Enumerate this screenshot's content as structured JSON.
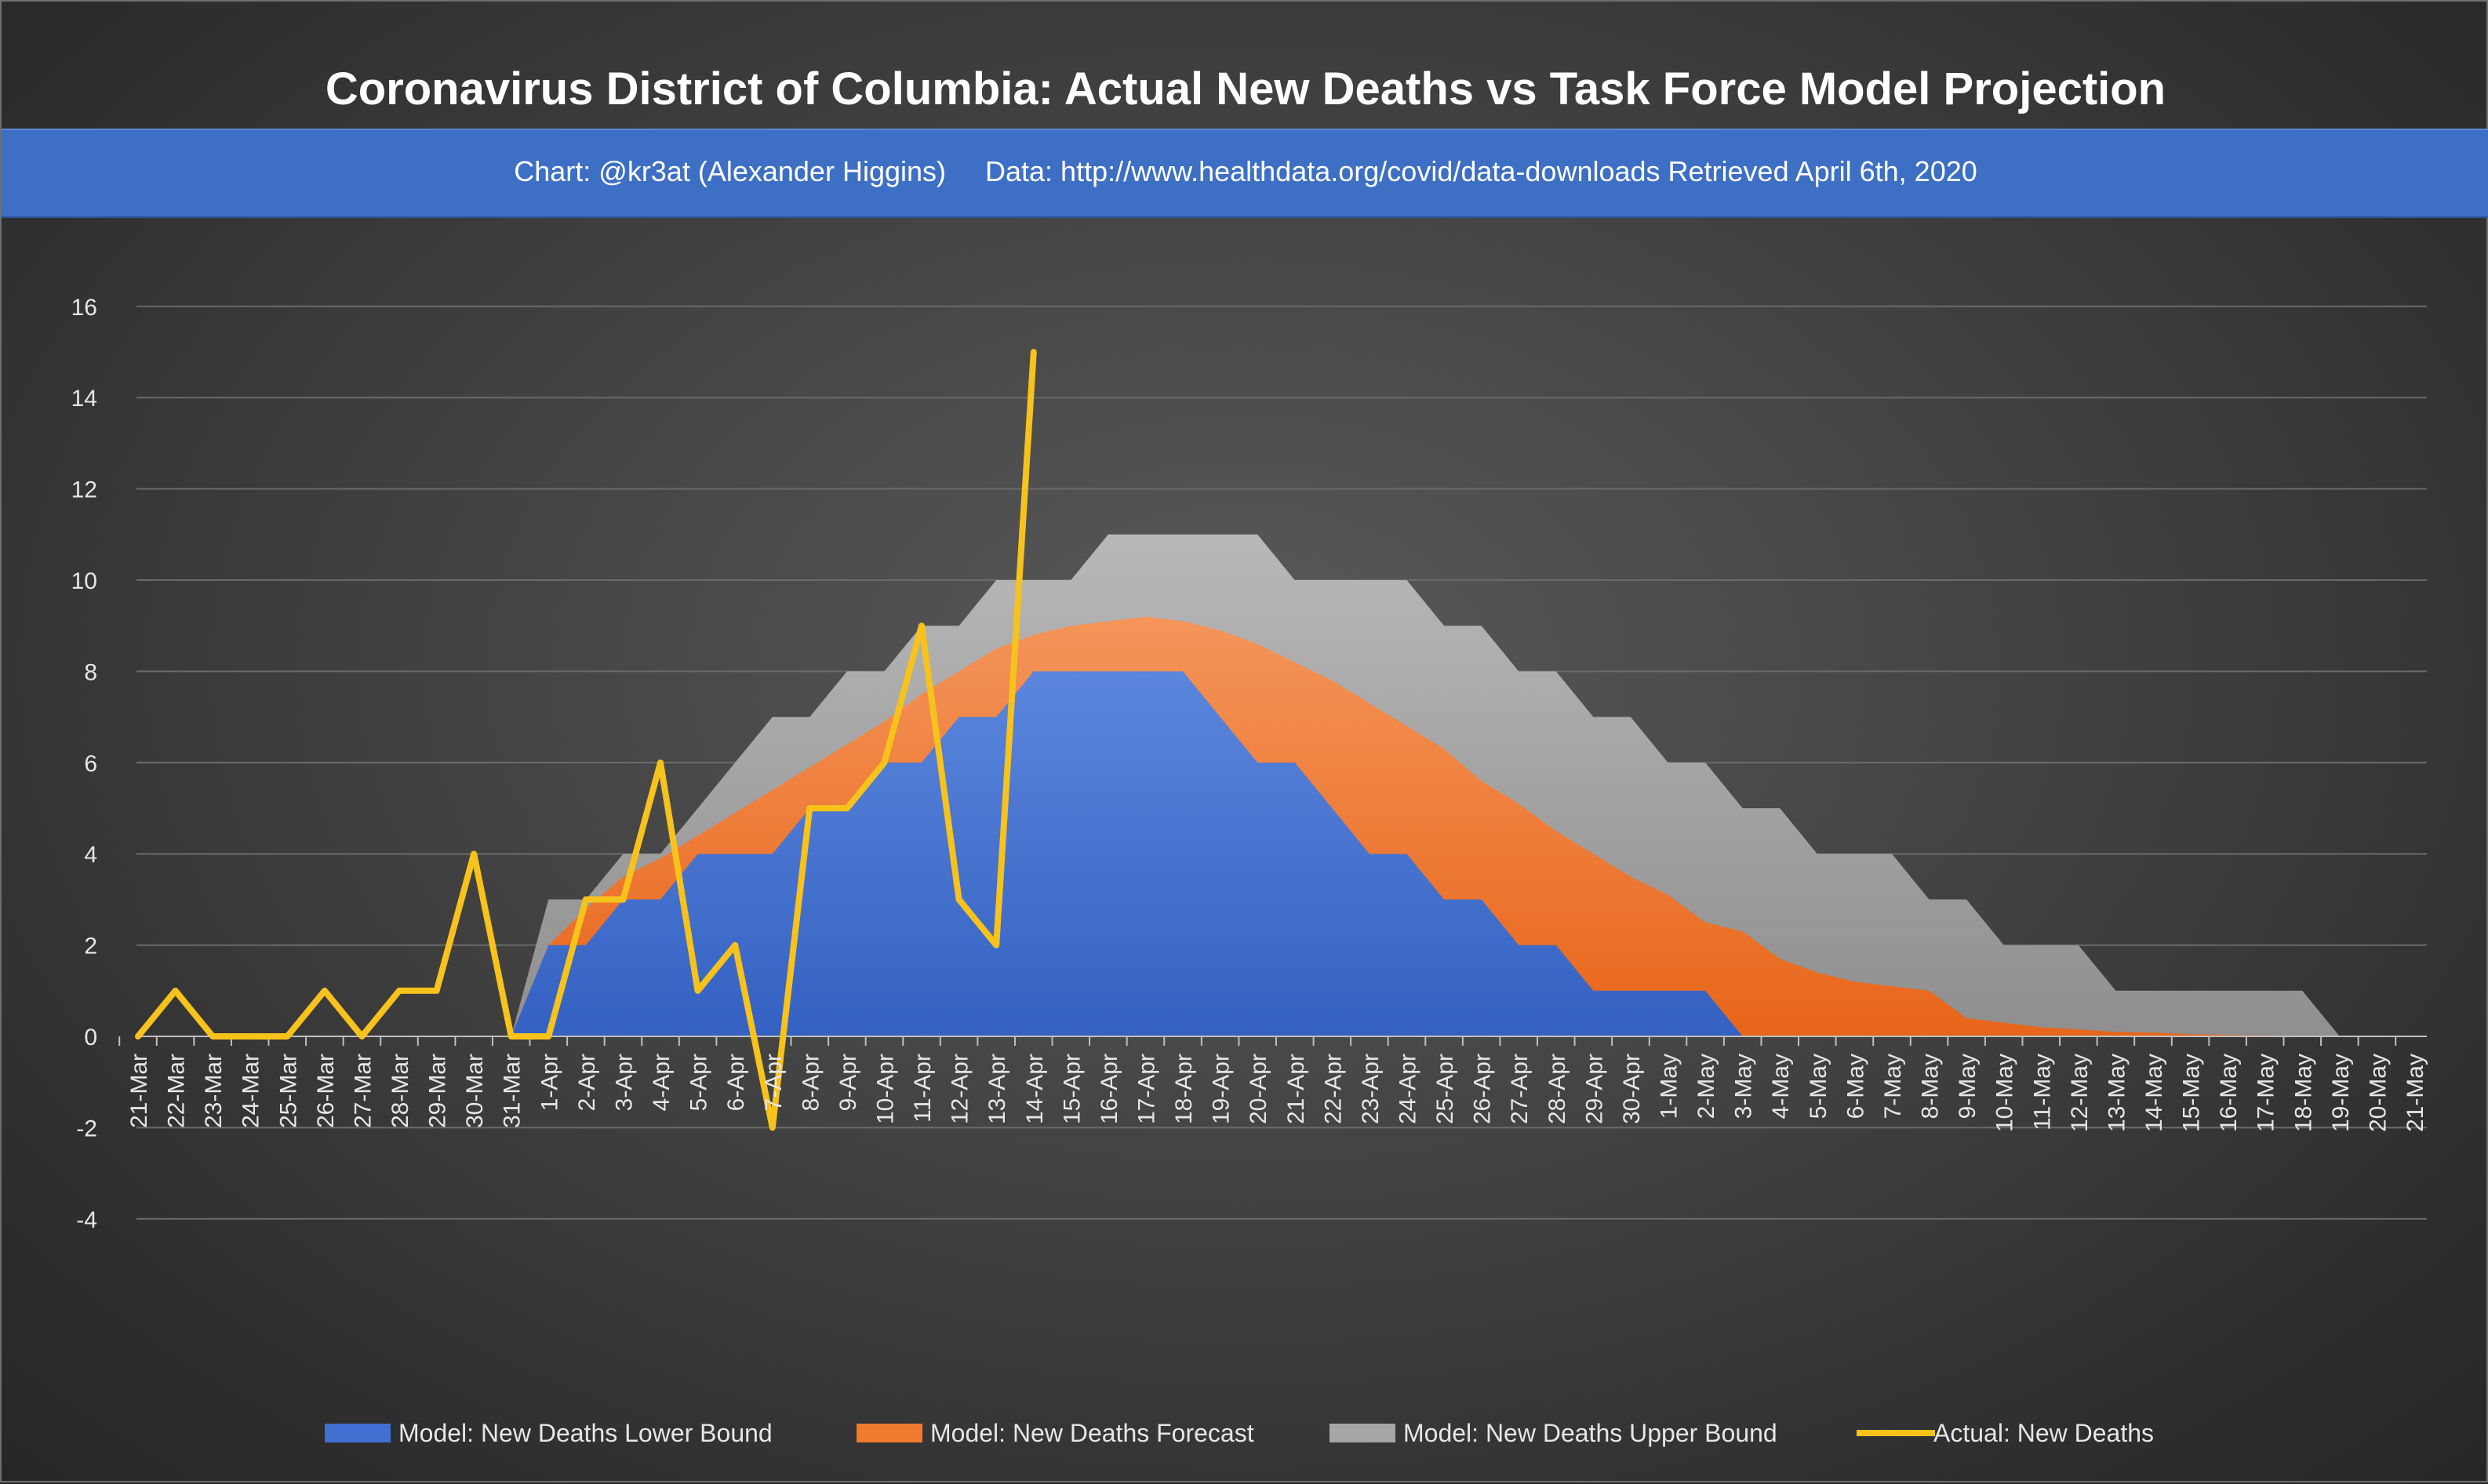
{
  "colors": {
    "lower": "#3f6fd1",
    "forecast": "#f07a2e",
    "upper": "#a6a6a6",
    "actual": "#f7c21b",
    "grid": "#6a6a6a"
  },
  "chart_data": {
    "type": "area",
    "title": "Coronavirus District of Columbia: Actual New Deaths vs Task Force Model Projection",
    "subtitle": "Chart: @kr3at (Alexander Higgins)     Data: http://www.healthdata.org/covid/data-downloads Retrieved April 6th, 2020",
    "xlabel": "",
    "ylabel": "",
    "ylim": [
      -4,
      16
    ],
    "yticks": [
      -4,
      -2,
      0,
      2,
      4,
      6,
      8,
      10,
      12,
      14,
      16
    ],
    "grid": true,
    "legend_position": "bottom",
    "categories": [
      "21-Mar",
      "22-Mar",
      "23-Mar",
      "24-Mar",
      "25-Mar",
      "26-Mar",
      "27-Mar",
      "28-Mar",
      "29-Mar",
      "30-Mar",
      "31-Mar",
      "1-Apr",
      "2-Apr",
      "3-Apr",
      "4-Apr",
      "5-Apr",
      "6-Apr",
      "7-Apr",
      "8-Apr",
      "9-Apr",
      "10-Apr",
      "11-Apr",
      "12-Apr",
      "13-Apr",
      "14-Apr",
      "15-Apr",
      "16-Apr",
      "17-Apr",
      "18-Apr",
      "19-Apr",
      "20-Apr",
      "21-Apr",
      "22-Apr",
      "23-Apr",
      "24-Apr",
      "25-Apr",
      "26-Apr",
      "27-Apr",
      "28-Apr",
      "29-Apr",
      "30-Apr",
      "1-May",
      "2-May",
      "3-May",
      "4-May",
      "5-May",
      "6-May",
      "7-May",
      "8-May",
      "9-May",
      "10-May",
      "11-May",
      "12-May",
      "13-May",
      "14-May",
      "15-May",
      "16-May",
      "17-May",
      "18-May",
      "19-May",
      "20-May",
      "21-May"
    ],
    "series": [
      {
        "name": "Model: New Deaths Upper Bound",
        "kind": "area",
        "color": "#a6a6a6",
        "values": [
          null,
          null,
          null,
          null,
          null,
          null,
          null,
          null,
          null,
          null,
          0,
          3,
          3,
          4,
          4,
          5,
          6,
          7,
          7,
          8,
          8,
          9,
          9,
          10,
          10,
          10,
          11,
          11,
          11,
          11,
          11,
          10,
          10,
          10,
          10,
          9,
          9,
          8,
          8,
          7,
          7,
          6,
          6,
          5,
          5,
          4,
          4,
          4,
          3,
          3,
          2,
          2,
          2,
          1,
          1,
          1,
          1,
          1,
          1,
          0,
          0,
          0
        ]
      },
      {
        "name": "Model: New Deaths Forecast",
        "kind": "area",
        "color": "#f07a2e",
        "values": [
          null,
          null,
          null,
          null,
          null,
          null,
          null,
          null,
          null,
          null,
          0,
          2,
          2.8,
          3.5,
          3.9,
          4.4,
          4.9,
          5.4,
          5.9,
          6.4,
          6.9,
          7.5,
          8.0,
          8.5,
          8.8,
          9.0,
          9.1,
          9.2,
          9.1,
          8.9,
          8.6,
          8.2,
          7.8,
          7.3,
          6.8,
          6.3,
          5.6,
          5.1,
          4.5,
          4.0,
          3.5,
          3.1,
          2.5,
          2.3,
          1.7,
          1.4,
          1.2,
          1.1,
          1.0,
          0.4,
          0.3,
          0.2,
          0.15,
          0.1,
          0.08,
          0.05,
          0.03,
          0.02,
          0.01,
          0,
          0,
          0
        ]
      },
      {
        "name": "Model: New Deaths Lower Bound",
        "kind": "area",
        "color": "#3f6fd1",
        "values": [
          null,
          null,
          null,
          null,
          null,
          null,
          null,
          null,
          null,
          null,
          0,
          2,
          2,
          3,
          3,
          4,
          4,
          4,
          5,
          5,
          6,
          6,
          7,
          7,
          8,
          8,
          8,
          8,
          8,
          7,
          6,
          6,
          5,
          4,
          4,
          3,
          3,
          2,
          2,
          1,
          1,
          1,
          1,
          0,
          0,
          0,
          0,
          0,
          0,
          0,
          0,
          0,
          0,
          0,
          0,
          0,
          0,
          0,
          0,
          0,
          0,
          0
        ]
      },
      {
        "name": "Actual: New Deaths",
        "kind": "line",
        "color": "#f7c21b",
        "values": [
          0,
          1,
          0,
          0,
          0,
          1,
          0,
          1,
          1,
          4,
          0,
          0,
          3,
          3,
          6,
          1,
          2,
          -2,
          5,
          5,
          6,
          9,
          3,
          2,
          15,
          null,
          null,
          null,
          null,
          null,
          null,
          null,
          null,
          null,
          null,
          null,
          null,
          null,
          null,
          null,
          null,
          null,
          null,
          null,
          null,
          null,
          null,
          null,
          null,
          null,
          null,
          null,
          null,
          null,
          null,
          null,
          null,
          null,
          null,
          null,
          null,
          null
        ]
      }
    ],
    "legend": [
      {
        "name": "Model: New Deaths Lower Bound",
        "color": "#3f6fd1",
        "kind": "area"
      },
      {
        "name": "Model: New Deaths Forecast",
        "color": "#f07a2e",
        "kind": "area"
      },
      {
        "name": "Model: New Deaths Upper Bound",
        "color": "#a6a6a6",
        "kind": "area"
      },
      {
        "name": "Actual: New Deaths",
        "color": "#f7c21b",
        "kind": "line"
      }
    ]
  }
}
